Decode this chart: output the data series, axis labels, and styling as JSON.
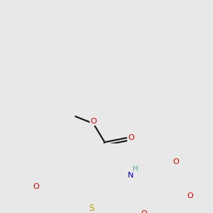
{
  "bg_color": "#e8e8e8",
  "atom_colors": {
    "C": "#1a1a1a",
    "O": "#cc0000",
    "N": "#0000cc",
    "S": "#b8a000",
    "H": "#5a9a9a"
  },
  "bond_color": "#1a1a1a",
  "bond_width": 1.6
}
